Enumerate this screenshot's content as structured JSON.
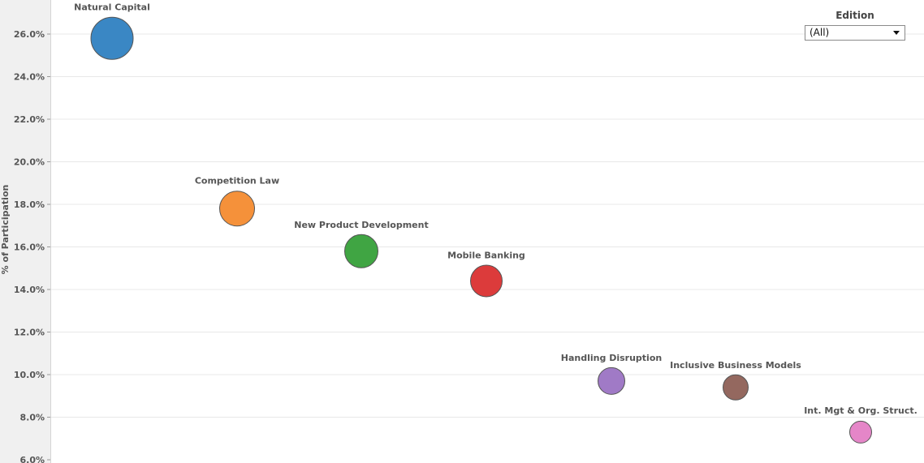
{
  "filter": {
    "title": "Edition",
    "selected": "(All)"
  },
  "chart_data": {
    "type": "scatter",
    "title": "",
    "xlabel": "",
    "ylabel": "% of Participation",
    "ylim": [
      6.0,
      27.0
    ],
    "y_ticks": [
      "6.0%",
      "8.0%",
      "10.0%",
      "12.0%",
      "14.0%",
      "16.0%",
      "18.0%",
      "20.0%",
      "22.0%",
      "24.0%",
      "26.0%"
    ],
    "y_tick_values": [
      6,
      8,
      10,
      12,
      14,
      16,
      18,
      20,
      22,
      24,
      26
    ],
    "grid": true,
    "points": [
      {
        "label": "Natural Capital",
        "y": 25.8,
        "color": "#3a87c4"
      },
      {
        "label": "Competition Law",
        "y": 17.8,
        "color": "#f5913a"
      },
      {
        "label": "New Product Development",
        "y": 15.8,
        "color": "#40a543"
      },
      {
        "label": "Mobile Banking",
        "y": 14.4,
        "color": "#dc3b3b"
      },
      {
        "label": "Handling Disruption",
        "y": 9.7,
        "color": "#a07ac6"
      },
      {
        "label": "Inclusive Business Models",
        "y": 9.4,
        "color": "#94685f"
      },
      {
        "label": "Int. Mgt & Org. Struct.",
        "y": 7.3,
        "color": "#e586c8"
      }
    ]
  }
}
